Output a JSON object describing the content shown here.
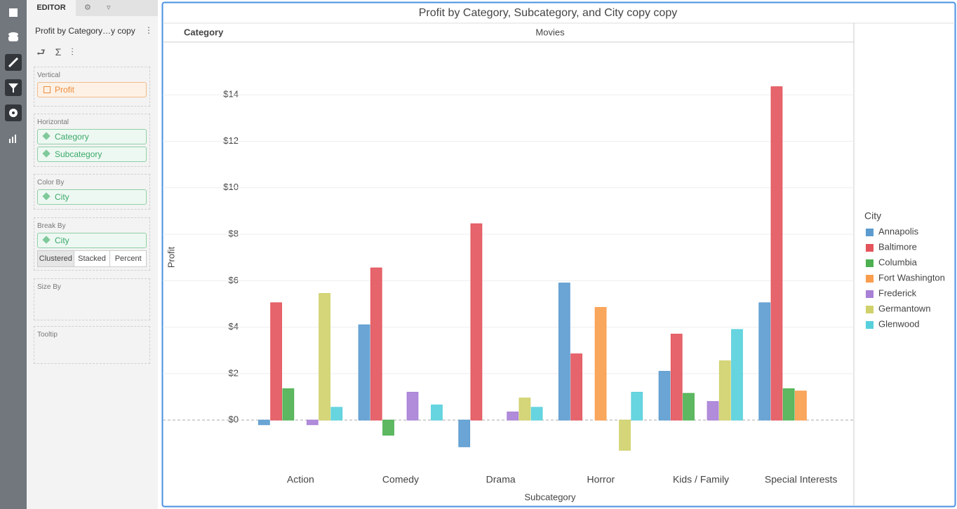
{
  "editor": {
    "tab": "EDITOR",
    "title": "Profit by Category…y copy",
    "sections": [
      {
        "label": "Vertical",
        "fields": [
          "Profit"
        ]
      },
      {
        "label": "Horizontal",
        "fields": [
          "Category",
          "Subcategory"
        ]
      },
      {
        "label": "Color By",
        "fields": [
          "City"
        ]
      },
      {
        "label": "Break By",
        "fields": [
          "City"
        ],
        "modes": [
          "Clustered",
          "Stacked",
          "Percent"
        ]
      },
      {
        "label": "Size By"
      },
      {
        "label": "Tooltip"
      }
    ]
  },
  "chart_data": {
    "type": "bar",
    "title": "Profit by Category, Subcategory, and City copy copy",
    "header_label": "Category",
    "header_value": "Movies",
    "xlabel": "Subcategory",
    "ylabel": "Profit",
    "legend_title": "City",
    "legend": "right",
    "grid": true,
    "categories": [
      "Action",
      "Comedy",
      "Drama",
      "Horror",
      "Kids / Family",
      "Special Interests"
    ],
    "ylim": [
      -2.5,
      16
    ],
    "yticks": [
      {
        "value": 0,
        "label": "$0"
      },
      {
        "value": 2,
        "label": "$2"
      },
      {
        "value": 4,
        "label": "$4"
      },
      {
        "value": 6,
        "label": "$6"
      },
      {
        "value": 8,
        "label": "$8"
      },
      {
        "value": 10,
        "label": "$10"
      },
      {
        "value": 12,
        "label": "$12"
      },
      {
        "value": 14,
        "label": "$14"
      }
    ],
    "series": [
      {
        "name": "Annapolis",
        "color": "#5b9bd0",
        "values": [
          -0.2,
          4.1,
          -1.15,
          5.9,
          2.1,
          5.05
        ]
      },
      {
        "name": "Baltimore",
        "color": "#e3545c",
        "values": [
          5.05,
          6.55,
          8.45,
          2.85,
          3.7,
          14.35
        ]
      },
      {
        "name": "Columbia",
        "color": "#4cb050",
        "values": [
          1.35,
          -0.65,
          null,
          null,
          1.15,
          1.35
        ]
      },
      {
        "name": "Fort Washington",
        "color": "#fa9d4c",
        "values": [
          null,
          null,
          null,
          4.85,
          null,
          1.25
        ]
      },
      {
        "name": "Frederick",
        "color": "#a880d6",
        "values": [
          -0.2,
          1.2,
          0.35,
          null,
          0.8,
          null
        ]
      },
      {
        "name": "Germantown",
        "color": "#cfd16a",
        "values": [
          5.45,
          null,
          0.95,
          -1.3,
          2.55,
          null
        ]
      },
      {
        "name": "Glenwood",
        "color": "#57d0dc",
        "values": [
          0.55,
          0.65,
          0.55,
          1.2,
          3.9,
          null
        ]
      }
    ]
  }
}
